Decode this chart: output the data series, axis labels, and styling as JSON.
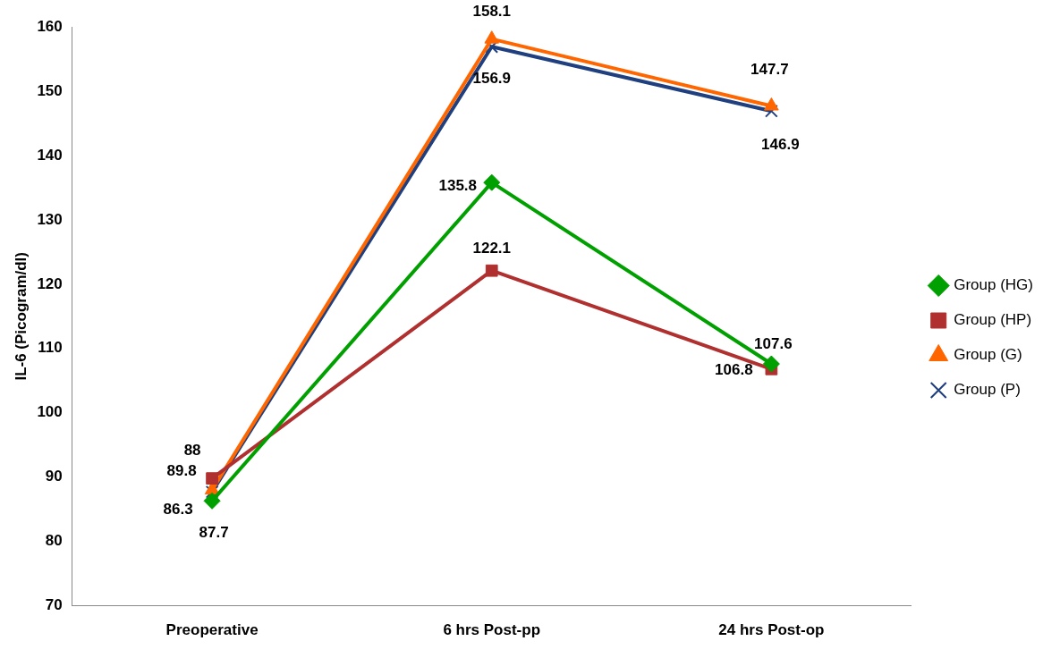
{
  "chart_data": {
    "type": "line",
    "ylabel": "IL-6 (Picogram/dl)",
    "categories": [
      "Preoperative",
      "6 hrs Post-pp",
      "24 hrs Post-op"
    ],
    "series": [
      {
        "name": "Group (HG)",
        "color": "#00a000",
        "marker": "diamond",
        "values": [
          86.3,
          135.8,
          107.6
        ]
      },
      {
        "name": "Group (HP)",
        "color": "#b03030",
        "marker": "square",
        "values": [
          89.8,
          122.1,
          106.8
        ]
      },
      {
        "name": "Group (G)",
        "color": "#ff6600",
        "marker": "triangle",
        "values": [
          88,
          158.1,
          147.7
        ]
      },
      {
        "name": "Group (P)",
        "color": "#1f3f7f",
        "marker": "cross",
        "values": [
          87.7,
          156.9,
          146.9
        ]
      }
    ],
    "ylim": [
      70,
      160
    ],
    "yticks": [
      70,
      80,
      90,
      100,
      110,
      120,
      130,
      140,
      150,
      160
    ],
    "grid": false,
    "legend": "right",
    "data_labels": true,
    "line_style": "solid"
  }
}
